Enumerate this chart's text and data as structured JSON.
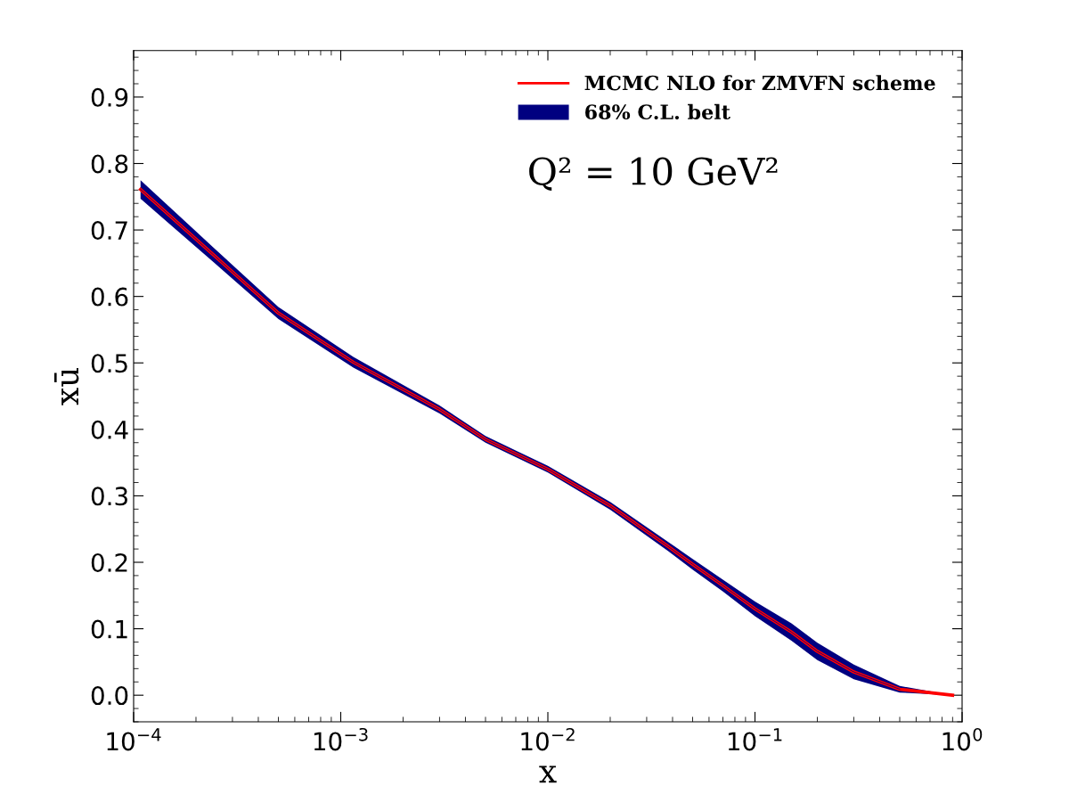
{
  "chart_data": {
    "type": "line",
    "xlabel": "x",
    "ylabel": "xū",
    "x": [
      0.000108,
      0.000244,
      0.0005,
      0.00115,
      0.003,
      0.005,
      0.01,
      0.02,
      0.038,
      0.05,
      0.07,
      0.1,
      0.15,
      0.2,
      0.3,
      0.5,
      0.9
    ],
    "series": [
      {
        "name": "MCMC NLO for ZMVFN scheme",
        "color": "#ff0000",
        "values": [
          0.761,
          0.662,
          0.575,
          0.501,
          0.43,
          0.385,
          0.34,
          0.285,
          0.224,
          0.197,
          0.165,
          0.13,
          0.095,
          0.066,
          0.035,
          0.009,
          0.0
        ]
      },
      {
        "type": "line",
        "name": "68% C.L. belt",
        "color": "#000080",
        "values": [
          0.761,
          0.662,
          0.575,
          0.501,
          0.43,
          0.385,
          0.34,
          0.285,
          0.224,
          0.197,
          0.165,
          0.13,
          0.095,
          0.066,
          0.035,
          0.009,
          null
        ],
        "upper": [
          0.775,
          0.673,
          0.584,
          0.509,
          0.436,
          0.39,
          0.345,
          0.291,
          0.231,
          0.205,
          0.174,
          0.141,
          0.108,
          0.079,
          0.046,
          0.014,
          0.0
        ],
        "lower": [
          0.747,
          0.651,
          0.566,
          0.493,
          0.424,
          0.38,
          0.335,
          0.279,
          0.217,
          0.189,
          0.156,
          0.119,
          0.082,
          0.053,
          0.024,
          0.004,
          0.0
        ]
      }
    ],
    "annotations": [
      {
        "text": "Q² = 10 GeV²"
      }
    ],
    "log": "x",
    "xlim": [
      0.0001,
      1
    ],
    "xticks": [
      {
        "value": 0.0001,
        "label": "10$^{−4}$"
      },
      {
        "value": 0.001,
        "label": "10$^{−3}$"
      },
      {
        "value": 0.01,
        "label": "10$^{−2}$"
      },
      {
        "value": 0.1,
        "label": "10$^{−1}$"
      },
      {
        "value": 1,
        "label": "10$^{0}$"
      }
    ],
    "ylim": [
      -0.04,
      0.97
    ],
    "yticks": [
      {
        "value": 0,
        "label": "0.0"
      },
      0.1,
      0.2,
      0.3,
      0.4,
      0.5,
      0.6,
      0.7,
      0.8,
      0.9
    ],
    "legend": "top right",
    "grid": false
  }
}
